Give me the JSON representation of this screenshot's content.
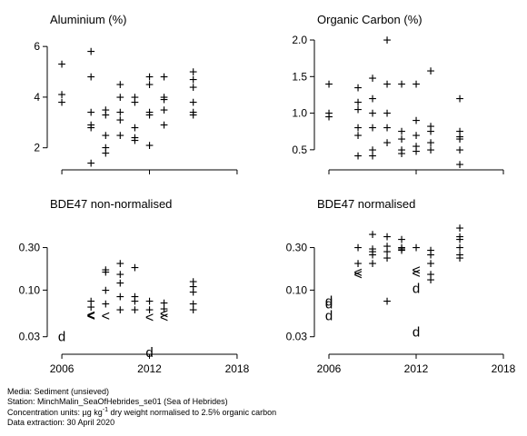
{
  "footer": {
    "media": "Media: Sediment (unsieved)",
    "station": "Station: MinchMalin_SeaOfHebrides_se01 (Sea of Hebrides)",
    "units_prefix": "Concentration units:  µg kg",
    "units_exp": "-1",
    "units_suffix": " dry weight normalised to 2.5% organic carbon",
    "extraction": "Data extraction: 30 April 2020"
  },
  "chart_data": [
    {
      "type": "scatter",
      "title": "Aluminium (%)",
      "xlim": [
        2005,
        2019
      ],
      "ylim": [
        1.2,
        6.4
      ],
      "log_y": false,
      "yticks": [
        2,
        4,
        6
      ],
      "yticklabels": [
        "2",
        "4",
        "6"
      ],
      "xticks": [
        2006,
        2012,
        2018
      ],
      "xticklabels": [
        "",
        "",
        ""
      ],
      "points": [
        {
          "x": 2006,
          "y": 5.3,
          "m": "+"
        },
        {
          "x": 2006,
          "y": 4.1,
          "m": "+"
        },
        {
          "x": 2006,
          "y": 3.8,
          "m": "+"
        },
        {
          "x": 2008,
          "y": 5.8,
          "m": "+"
        },
        {
          "x": 2008,
          "y": 4.8,
          "m": "+"
        },
        {
          "x": 2008,
          "y": 3.4,
          "m": "+"
        },
        {
          "x": 2008,
          "y": 2.9,
          "m": "+"
        },
        {
          "x": 2008,
          "y": 2.8,
          "m": "+"
        },
        {
          "x": 2008,
          "y": 1.4,
          "m": "+"
        },
        {
          "x": 2009,
          "y": 3.5,
          "m": "+"
        },
        {
          "x": 2009,
          "y": 3.3,
          "m": "+"
        },
        {
          "x": 2009,
          "y": 2.5,
          "m": "+"
        },
        {
          "x": 2009,
          "y": 2.0,
          "m": "+"
        },
        {
          "x": 2009,
          "y": 1.8,
          "m": "+"
        },
        {
          "x": 2010,
          "y": 4.5,
          "m": "+"
        },
        {
          "x": 2010,
          "y": 4.0,
          "m": "+"
        },
        {
          "x": 2010,
          "y": 3.4,
          "m": "+"
        },
        {
          "x": 2010,
          "y": 3.1,
          "m": "+"
        },
        {
          "x": 2010,
          "y": 2.5,
          "m": "+"
        },
        {
          "x": 2011,
          "y": 4.0,
          "m": "+"
        },
        {
          "x": 2011,
          "y": 3.8,
          "m": "+"
        },
        {
          "x": 2011,
          "y": 2.8,
          "m": "+"
        },
        {
          "x": 2011,
          "y": 2.4,
          "m": "+"
        },
        {
          "x": 2011,
          "y": 2.3,
          "m": "+"
        },
        {
          "x": 2012,
          "y": 4.8,
          "m": "+"
        },
        {
          "x": 2012,
          "y": 4.5,
          "m": "+"
        },
        {
          "x": 2012,
          "y": 3.4,
          "m": "+"
        },
        {
          "x": 2012,
          "y": 3.3,
          "m": "+"
        },
        {
          "x": 2012,
          "y": 2.1,
          "m": "+"
        },
        {
          "x": 2013,
          "y": 4.8,
          "m": "+"
        },
        {
          "x": 2013,
          "y": 4.0,
          "m": "+"
        },
        {
          "x": 2013,
          "y": 3.9,
          "m": "+"
        },
        {
          "x": 2013,
          "y": 3.5,
          "m": "+"
        },
        {
          "x": 2013,
          "y": 2.9,
          "m": "+"
        },
        {
          "x": 2015,
          "y": 5.0,
          "m": "+"
        },
        {
          "x": 2015,
          "y": 4.7,
          "m": "+"
        },
        {
          "x": 2015,
          "y": 4.4,
          "m": "+"
        },
        {
          "x": 2015,
          "y": 3.8,
          "m": "+"
        },
        {
          "x": 2015,
          "y": 3.4,
          "m": "+"
        },
        {
          "x": 2015,
          "y": 3.3,
          "m": "+"
        }
      ]
    },
    {
      "type": "scatter",
      "title": "Organic Carbon (%)",
      "xlim": [
        2005,
        2019
      ],
      "ylim": [
        0.25,
        2.05
      ],
      "log_y": false,
      "yticks": [
        0.5,
        1.0,
        1.5,
        2.0
      ],
      "yticklabels": [
        "0.5",
        "1.0",
        "1.5",
        "2.0"
      ],
      "xticks": [
        2006,
        2012,
        2018
      ],
      "xticklabels": [
        "",
        "",
        ""
      ],
      "points": [
        {
          "x": 2006,
          "y": 1.4,
          "m": "+"
        },
        {
          "x": 2006,
          "y": 1.0,
          "m": "+"
        },
        {
          "x": 2006,
          "y": 0.95,
          "m": "+"
        },
        {
          "x": 2008,
          "y": 1.35,
          "m": "+"
        },
        {
          "x": 2008,
          "y": 1.15,
          "m": "+"
        },
        {
          "x": 2008,
          "y": 1.05,
          "m": "+"
        },
        {
          "x": 2008,
          "y": 0.8,
          "m": "+"
        },
        {
          "x": 2008,
          "y": 0.7,
          "m": "+"
        },
        {
          "x": 2008,
          "y": 0.42,
          "m": "+"
        },
        {
          "x": 2009,
          "y": 1.48,
          "m": "+"
        },
        {
          "x": 2009,
          "y": 1.2,
          "m": "+"
        },
        {
          "x": 2009,
          "y": 1.0,
          "m": "+"
        },
        {
          "x": 2009,
          "y": 0.8,
          "m": "+"
        },
        {
          "x": 2009,
          "y": 0.5,
          "m": "+"
        },
        {
          "x": 2009,
          "y": 0.42,
          "m": "+"
        },
        {
          "x": 2010,
          "y": 2.0,
          "m": "+"
        },
        {
          "x": 2010,
          "y": 1.4,
          "m": "+"
        },
        {
          "x": 2010,
          "y": 1.0,
          "m": "+"
        },
        {
          "x": 2010,
          "y": 0.8,
          "m": "+"
        },
        {
          "x": 2010,
          "y": 0.6,
          "m": "+"
        },
        {
          "x": 2011,
          "y": 1.4,
          "m": "+"
        },
        {
          "x": 2011,
          "y": 0.75,
          "m": "+"
        },
        {
          "x": 2011,
          "y": 0.65,
          "m": "+"
        },
        {
          "x": 2011,
          "y": 0.5,
          "m": "+"
        },
        {
          "x": 2011,
          "y": 0.45,
          "m": "+"
        },
        {
          "x": 2012,
          "y": 1.4,
          "m": "+"
        },
        {
          "x": 2012,
          "y": 0.9,
          "m": "+"
        },
        {
          "x": 2012,
          "y": 0.7,
          "m": "+"
        },
        {
          "x": 2012,
          "y": 0.55,
          "m": "+"
        },
        {
          "x": 2012,
          "y": 0.48,
          "m": "+"
        },
        {
          "x": 2013,
          "y": 1.58,
          "m": "+"
        },
        {
          "x": 2013,
          "y": 0.82,
          "m": "+"
        },
        {
          "x": 2013,
          "y": 0.75,
          "m": "+"
        },
        {
          "x": 2013,
          "y": 0.6,
          "m": "+"
        },
        {
          "x": 2013,
          "y": 0.5,
          "m": "+"
        },
        {
          "x": 2015,
          "y": 1.2,
          "m": "+"
        },
        {
          "x": 2015,
          "y": 0.75,
          "m": "+"
        },
        {
          "x": 2015,
          "y": 0.68,
          "m": "+"
        },
        {
          "x": 2015,
          "y": 0.65,
          "m": "+"
        },
        {
          "x": 2015,
          "y": 0.5,
          "m": "+"
        },
        {
          "x": 2015,
          "y": 0.3,
          "m": "+"
        }
      ]
    },
    {
      "type": "scatter",
      "title": "BDE47 non-normalised",
      "xlim": [
        2005,
        2019
      ],
      "ylim": [
        0.02,
        0.6
      ],
      "log_y": true,
      "yticks": [
        0.03,
        0.1,
        0.3
      ],
      "yticklabels": [
        "0.03",
        "0.10",
        "0.30"
      ],
      "xticks": [
        2006,
        2012,
        2018
      ],
      "xticklabels": [
        "2006",
        "2012",
        "2018"
      ],
      "points": [
        {
          "x": 2006,
          "y": 0.03,
          "m": "d"
        },
        {
          "x": 2008,
          "y": 0.075,
          "m": "+"
        },
        {
          "x": 2008,
          "y": 0.065,
          "m": "+"
        },
        {
          "x": 2008,
          "y": 0.053,
          "m": "<"
        },
        {
          "x": 2008,
          "y": 0.052,
          "m": "<"
        },
        {
          "x": 2009,
          "y": 0.17,
          "m": "+"
        },
        {
          "x": 2009,
          "y": 0.16,
          "m": "+"
        },
        {
          "x": 2009,
          "y": 0.1,
          "m": "+"
        },
        {
          "x": 2009,
          "y": 0.07,
          "m": "+"
        },
        {
          "x": 2009,
          "y": 0.052,
          "m": "<"
        },
        {
          "x": 2010,
          "y": 0.2,
          "m": "+"
        },
        {
          "x": 2010,
          "y": 0.15,
          "m": "+"
        },
        {
          "x": 2010,
          "y": 0.12,
          "m": "+"
        },
        {
          "x": 2010,
          "y": 0.085,
          "m": "+"
        },
        {
          "x": 2010,
          "y": 0.06,
          "m": "+"
        },
        {
          "x": 2011,
          "y": 0.18,
          "m": "+"
        },
        {
          "x": 2011,
          "y": 0.085,
          "m": "+"
        },
        {
          "x": 2011,
          "y": 0.075,
          "m": "+"
        },
        {
          "x": 2011,
          "y": 0.06,
          "m": "+"
        },
        {
          "x": 2012,
          "y": 0.075,
          "m": "+"
        },
        {
          "x": 2012,
          "y": 0.06,
          "m": "+"
        },
        {
          "x": 2012,
          "y": 0.05,
          "m": "<"
        },
        {
          "x": 2012,
          "y": 0.02,
          "m": "d"
        },
        {
          "x": 2013,
          "y": 0.072,
          "m": "+"
        },
        {
          "x": 2013,
          "y": 0.062,
          "m": "+"
        },
        {
          "x": 2013,
          "y": 0.055,
          "m": "<"
        },
        {
          "x": 2013,
          "y": 0.05,
          "m": "<"
        },
        {
          "x": 2015,
          "y": 0.125,
          "m": "+"
        },
        {
          "x": 2015,
          "y": 0.11,
          "m": "+"
        },
        {
          "x": 2015,
          "y": 0.095,
          "m": "+"
        },
        {
          "x": 2015,
          "y": 0.07,
          "m": "+"
        },
        {
          "x": 2015,
          "y": 0.06,
          "m": "+"
        }
      ]
    },
    {
      "type": "scatter",
      "title": "BDE47 normalised",
      "xlim": [
        2005,
        2019
      ],
      "ylim": [
        0.02,
        0.6
      ],
      "log_y": true,
      "yticks": [
        0.03,
        0.1,
        0.3
      ],
      "yticklabels": [
        "0.03",
        "0.10",
        "0.30"
      ],
      "xticks": [
        2006,
        2012,
        2018
      ],
      "xticklabels": [
        "2006",
        "2012",
        "2018"
      ],
      "points": [
        {
          "x": 2006,
          "y": 0.075,
          "m": "d"
        },
        {
          "x": 2006,
          "y": 0.07,
          "m": "d"
        },
        {
          "x": 2006,
          "y": 0.052,
          "m": "d"
        },
        {
          "x": 2008,
          "y": 0.3,
          "m": "+"
        },
        {
          "x": 2008,
          "y": 0.2,
          "m": "+"
        },
        {
          "x": 2008,
          "y": 0.16,
          "m": "<"
        },
        {
          "x": 2008,
          "y": 0.15,
          "m": "<"
        },
        {
          "x": 2009,
          "y": 0.42,
          "m": "+"
        },
        {
          "x": 2009,
          "y": 0.29,
          "m": "+"
        },
        {
          "x": 2009,
          "y": 0.27,
          "m": "+"
        },
        {
          "x": 2009,
          "y": 0.25,
          "m": "+"
        },
        {
          "x": 2009,
          "y": 0.2,
          "m": "+"
        },
        {
          "x": 2010,
          "y": 0.4,
          "m": "+"
        },
        {
          "x": 2010,
          "y": 0.31,
          "m": "+"
        },
        {
          "x": 2010,
          "y": 0.27,
          "m": "+"
        },
        {
          "x": 2010,
          "y": 0.23,
          "m": "+"
        },
        {
          "x": 2010,
          "y": 0.075,
          "m": "+"
        },
        {
          "x": 2011,
          "y": 0.37,
          "m": "+"
        },
        {
          "x": 2011,
          "y": 0.3,
          "m": "+"
        },
        {
          "x": 2011,
          "y": 0.29,
          "m": "+"
        },
        {
          "x": 2011,
          "y": 0.28,
          "m": "+"
        },
        {
          "x": 2012,
          "y": 0.3,
          "m": "+"
        },
        {
          "x": 2012,
          "y": 0.17,
          "m": "<"
        },
        {
          "x": 2012,
          "y": 0.155,
          "m": "<"
        },
        {
          "x": 2012,
          "y": 0.105,
          "m": "d"
        },
        {
          "x": 2012,
          "y": 0.034,
          "m": "d"
        },
        {
          "x": 2013,
          "y": 0.28,
          "m": "+"
        },
        {
          "x": 2013,
          "y": 0.25,
          "m": "+"
        },
        {
          "x": 2013,
          "y": 0.2,
          "m": "+"
        },
        {
          "x": 2013,
          "y": 0.15,
          "m": "+"
        },
        {
          "x": 2013,
          "y": 0.13,
          "m": "+"
        },
        {
          "x": 2015,
          "y": 0.5,
          "m": "+"
        },
        {
          "x": 2015,
          "y": 0.4,
          "m": "+"
        },
        {
          "x": 2015,
          "y": 0.37,
          "m": "+"
        },
        {
          "x": 2015,
          "y": 0.3,
          "m": "+"
        },
        {
          "x": 2015,
          "y": 0.25,
          "m": "+"
        },
        {
          "x": 2015,
          "y": 0.23,
          "m": "+"
        }
      ]
    }
  ]
}
